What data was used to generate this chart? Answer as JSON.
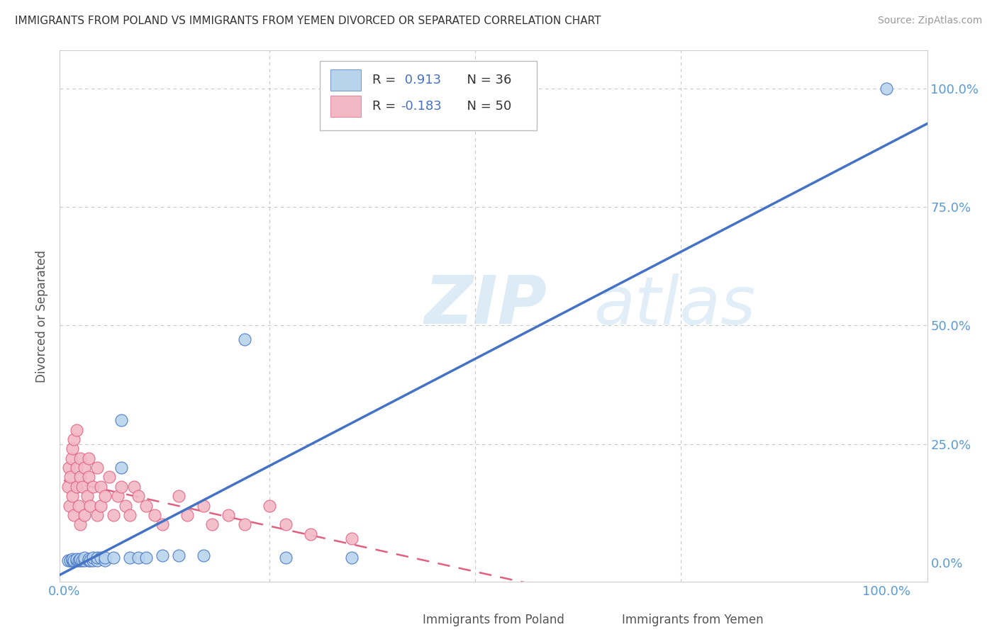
{
  "title": "IMMIGRANTS FROM POLAND VS IMMIGRANTS FROM YEMEN DIVORCED OR SEPARATED CORRELATION CHART",
  "source": "Source: ZipAtlas.com",
  "ylabel": "Divorced or Separated",
  "legend_labels": [
    "Immigrants from Poland",
    "Immigrants from Yemen"
  ],
  "watermark": "ZIPatlas",
  "blue_color": "#b8d4ed",
  "pink_color": "#f2b8c6",
  "blue_line_color": "#4472c4",
  "pink_line_color": "#e06080",
  "r_value_color": "#4472c4",
  "tick_label_color": "#5b9bd5",
  "grid_color": "#c8c8c8",
  "background_color": "#ffffff",
  "poland_x": [
    0.005,
    0.008,
    0.01,
    0.01,
    0.012,
    0.015,
    0.015,
    0.018,
    0.02,
    0.02,
    0.022,
    0.025,
    0.025,
    0.03,
    0.03,
    0.032,
    0.035,
    0.035,
    0.04,
    0.04,
    0.045,
    0.05,
    0.05,
    0.06,
    0.07,
    0.07,
    0.08,
    0.09,
    0.1,
    0.12,
    0.14,
    0.17,
    0.22,
    0.27,
    0.35,
    1.0
  ],
  "poland_y": [
    0.005,
    0.005,
    0.005,
    0.008,
    0.005,
    0.005,
    0.008,
    0.005,
    0.005,
    0.008,
    0.005,
    0.005,
    0.01,
    0.005,
    0.008,
    0.005,
    0.005,
    0.01,
    0.005,
    0.01,
    0.01,
    0.005,
    0.01,
    0.01,
    0.2,
    0.3,
    0.01,
    0.01,
    0.01,
    0.015,
    0.015,
    0.015,
    0.47,
    0.01,
    0.01,
    1.0
  ],
  "yemen_x": [
    0.005,
    0.006,
    0.007,
    0.008,
    0.009,
    0.01,
    0.01,
    0.012,
    0.012,
    0.015,
    0.015,
    0.015,
    0.018,
    0.02,
    0.02,
    0.02,
    0.022,
    0.025,
    0.025,
    0.028,
    0.03,
    0.03,
    0.032,
    0.035,
    0.04,
    0.04,
    0.045,
    0.045,
    0.05,
    0.055,
    0.06,
    0.065,
    0.07,
    0.075,
    0.08,
    0.085,
    0.09,
    0.1,
    0.11,
    0.12,
    0.14,
    0.15,
    0.17,
    0.18,
    0.2,
    0.22,
    0.25,
    0.27,
    0.3,
    0.35
  ],
  "yemen_y": [
    0.16,
    0.2,
    0.12,
    0.18,
    0.22,
    0.14,
    0.24,
    0.1,
    0.26,
    0.16,
    0.2,
    0.28,
    0.12,
    0.18,
    0.22,
    0.08,
    0.16,
    0.2,
    0.1,
    0.14,
    0.18,
    0.22,
    0.12,
    0.16,
    0.2,
    0.1,
    0.16,
    0.12,
    0.14,
    0.18,
    0.1,
    0.14,
    0.16,
    0.12,
    0.1,
    0.16,
    0.14,
    0.12,
    0.1,
    0.08,
    0.14,
    0.1,
    0.12,
    0.08,
    0.1,
    0.08,
    0.12,
    0.08,
    0.06,
    0.05
  ],
  "poland_trend": [
    0.0,
    1.0,
    -0.02,
    1.02
  ],
  "yemen_trend_start_x": 0.0,
  "yemen_trend_end_x": 1.05,
  "xlim": [
    -0.005,
    1.05
  ],
  "ylim": [
    -0.04,
    1.08
  ],
  "xticks": [
    0.0,
    0.25,
    0.5,
    0.75,
    1.0
  ],
  "yticks": [
    0.0,
    0.25,
    0.5,
    0.75,
    1.0
  ],
  "tick_labels": [
    "0.0%",
    "25.0%",
    "50.0%",
    "75.0%",
    "100.0%"
  ]
}
